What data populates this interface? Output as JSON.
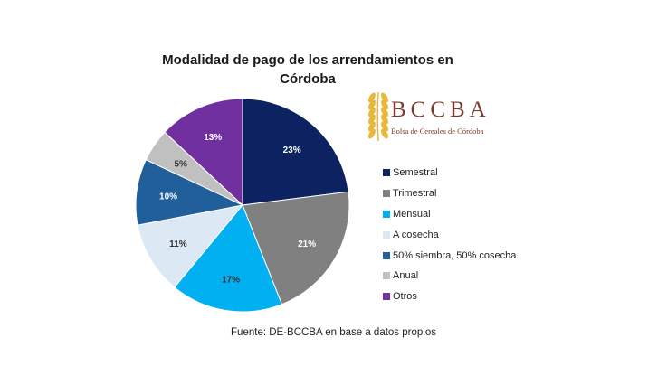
{
  "chart_data": {
    "type": "pie",
    "title": "Modalidad de pago de los arrendamientos en Córdoba",
    "title_lines": [
      "Modalidad de pago de los arrendamientos en",
      "Córdoba"
    ],
    "categories": [
      "Semestral",
      "Trimestral",
      "Mensual",
      "A cosecha",
      "50% siembra, 50% cosecha",
      "Anual",
      "Otros"
    ],
    "values": [
      23,
      21,
      17,
      11,
      10,
      5,
      13
    ],
    "labels": [
      "23%",
      "21%",
      "17%",
      "11%",
      "10%",
      "5%",
      "13%"
    ],
    "colors": [
      "#0d2260",
      "#808080",
      "#00b0f0",
      "#dde8f5",
      "#215f9a",
      "#c0c0c0",
      "#7030a0"
    ],
    "label_colors": [
      "#ffffff",
      "#ffffff",
      "#333333",
      "#333333",
      "#ffffff",
      "#333333",
      "#ffffff"
    ],
    "legend_position": "right",
    "source": "Fuente: DE-BCCBA en base a datos propios"
  },
  "logo": {
    "text": "BCCBA",
    "subtitle": "Bolsa de Cereales de Córdoba",
    "color": "#7a3b2a",
    "wheat_color": "#e8b83a"
  }
}
